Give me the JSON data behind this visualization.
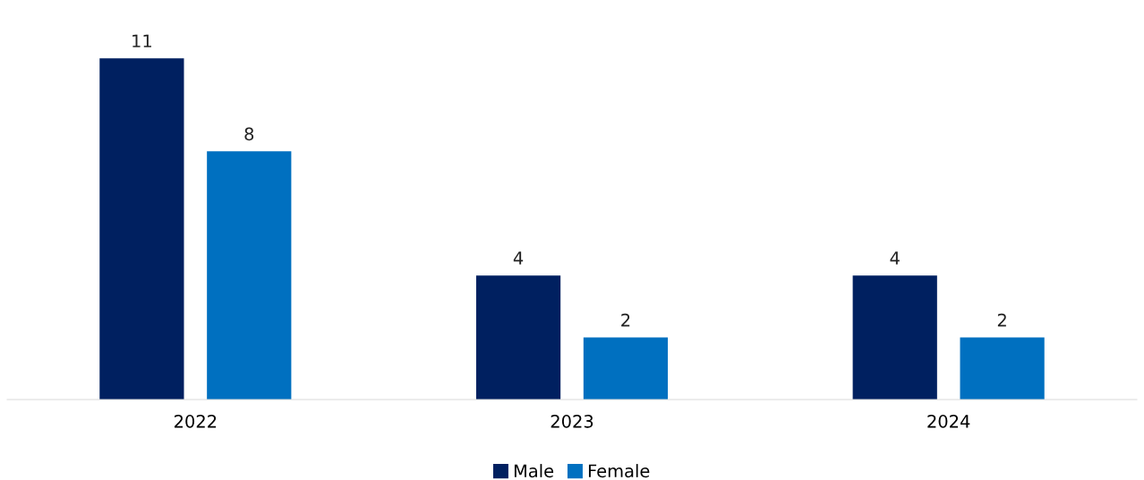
{
  "chart_data": {
    "type": "bar",
    "categories": [
      "2022",
      "2023",
      "2024"
    ],
    "series": [
      {
        "name": "Male",
        "color": "#002060",
        "values": [
          11,
          4,
          4
        ]
      },
      {
        "name": "Female",
        "color": "#0070c0",
        "values": [
          8,
          2,
          2
        ]
      }
    ],
    "data_labels": true,
    "legend": "bottom",
    "tick_labels": "x"
  }
}
